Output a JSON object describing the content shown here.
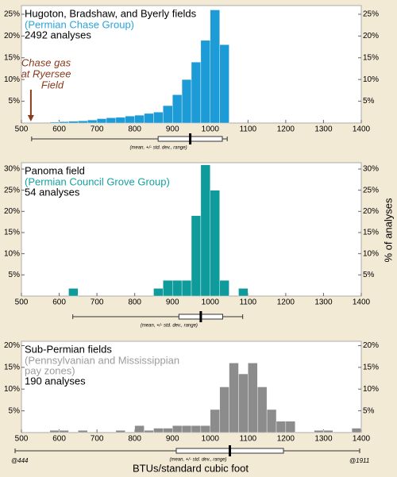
{
  "chart_data": [
    {
      "type": "histogram",
      "title": "Hugoton, Bradshaw, and Byerly fields",
      "subtitle": [
        "(Permian Chase Group)"
      ],
      "note": "2492 analyses",
      "color": "#1d9bd7",
      "subtitle_color": "#2aa3d9",
      "bins": [
        575,
        600,
        625,
        650,
        675,
        700,
        725,
        750,
        775,
        800,
        825,
        850,
        875,
        900,
        925,
        950,
        975,
        1000,
        1025,
        1050
      ],
      "values": [
        0.2,
        0.3,
        0.4,
        0.5,
        0.7,
        1.0,
        1.2,
        1.3,
        1.6,
        1.8,
        2.2,
        2.5,
        4.0,
        6.5,
        10,
        14,
        19,
        26,
        18
      ],
      "xlim": [
        500,
        1400
      ],
      "ylim": [
        0,
        27
      ],
      "xticks": [
        500,
        600,
        700,
        800,
        900,
        1000,
        1100,
        1200,
        1300,
        1400
      ],
      "yticks": [
        {
          "value": 5,
          "label": "5%"
        },
        {
          "value": 10,
          "label": "10%"
        },
        {
          "value": 15,
          "label": "15%"
        },
        {
          "value": 20,
          "label": "20%"
        },
        {
          "value": 25,
          "label": "25%"
        }
      ],
      "summary": {
        "mean": 947,
        "std": 85,
        "min": 527,
        "max": 1045,
        "label": "(mean, +/- std. dev., range)"
      },
      "annotation": {
        "text": [
          "Chase gas",
          "at Ryersee",
          "Field"
        ],
        "x": 525,
        "color": "#8b3a1a"
      }
    },
    {
      "type": "histogram",
      "title": "Panoma field",
      "subtitle": [
        "(Permian Council Grove Group)"
      ],
      "note": "54 analyses",
      "color": "#0f9b9b",
      "subtitle_color": "#15a0a0",
      "bins": [
        625,
        650,
        675,
        700,
        725,
        750,
        775,
        800,
        825,
        850,
        875,
        900,
        925,
        950,
        975,
        1000,
        1025,
        1050,
        1075,
        1100
      ],
      "values": [
        1.8,
        0,
        0,
        0,
        0,
        0,
        0,
        0,
        0,
        1.8,
        3.7,
        3.7,
        3.7,
        19,
        31,
        25,
        3.7,
        0,
        1.8
      ],
      "xlim": [
        500,
        1400
      ],
      "ylim": [
        0,
        31.5
      ],
      "xticks": [
        500,
        600,
        700,
        800,
        900,
        1000,
        1100,
        1200,
        1300,
        1400
      ],
      "yticks": [
        {
          "value": 5,
          "label": "5%"
        },
        {
          "value": 10,
          "label": "10%"
        },
        {
          "value": 15,
          "label": "15%"
        },
        {
          "value": 20,
          "label": "20%"
        },
        {
          "value": 25,
          "label": "25%"
        },
        {
          "value": 30,
          "label": "30%"
        }
      ],
      "summary": {
        "mean": 975,
        "std": 58,
        "min": 636,
        "max": 1086,
        "label": "(mean, +/- std. dev., range)"
      },
      "ylabel": "% of analyses"
    },
    {
      "type": "histogram",
      "title": "Sub-Permian fields",
      "subtitle": [
        "(Pennsylvanian and Mississippian",
        "pay zones)"
      ],
      "note": "190 analyses",
      "color": "#8c8c8c",
      "subtitle_color": "#9c9c9c",
      "bins": [
        500,
        525,
        550,
        575,
        600,
        625,
        650,
        675,
        700,
        725,
        750,
        775,
        800,
        825,
        850,
        875,
        900,
        925,
        950,
        975,
        1000,
        1025,
        1050,
        1075,
        1100,
        1125,
        1150,
        1175,
        1200,
        1225,
        1250,
        1275,
        1300,
        1325,
        1350,
        1375,
        1400
      ],
      "values": [
        0,
        0,
        0,
        0.5,
        0.5,
        0,
        0.5,
        0,
        0,
        0,
        0.5,
        0,
        1.6,
        0.5,
        1,
        1,
        1.6,
        1.6,
        1.6,
        1.6,
        5.3,
        10.5,
        16,
        13.5,
        16,
        10.5,
        5.3,
        2.6,
        2.6,
        0,
        0,
        0.5,
        0.5,
        0,
        0,
        1
      ],
      "xlim": [
        500,
        1400
      ],
      "ylim": [
        0,
        21
      ],
      "xticks": [
        500,
        600,
        700,
        800,
        900,
        1000,
        1100,
        1200,
        1300,
        1400
      ],
      "yticks": [
        {
          "value": 5,
          "label": "5%"
        },
        {
          "value": 10,
          "label": "10%"
        },
        {
          "value": 15,
          "label": "15%"
        },
        {
          "value": 20,
          "label": "20%"
        }
      ],
      "summary": {
        "mean": 1052,
        "std": 142,
        "min": 444,
        "max": 1911,
        "label": "(mean, +/- std. dev., range)",
        "min_label": "@444",
        "max_label": "@1911"
      },
      "xlabel": "BTUs/standard cubic foot"
    }
  ]
}
